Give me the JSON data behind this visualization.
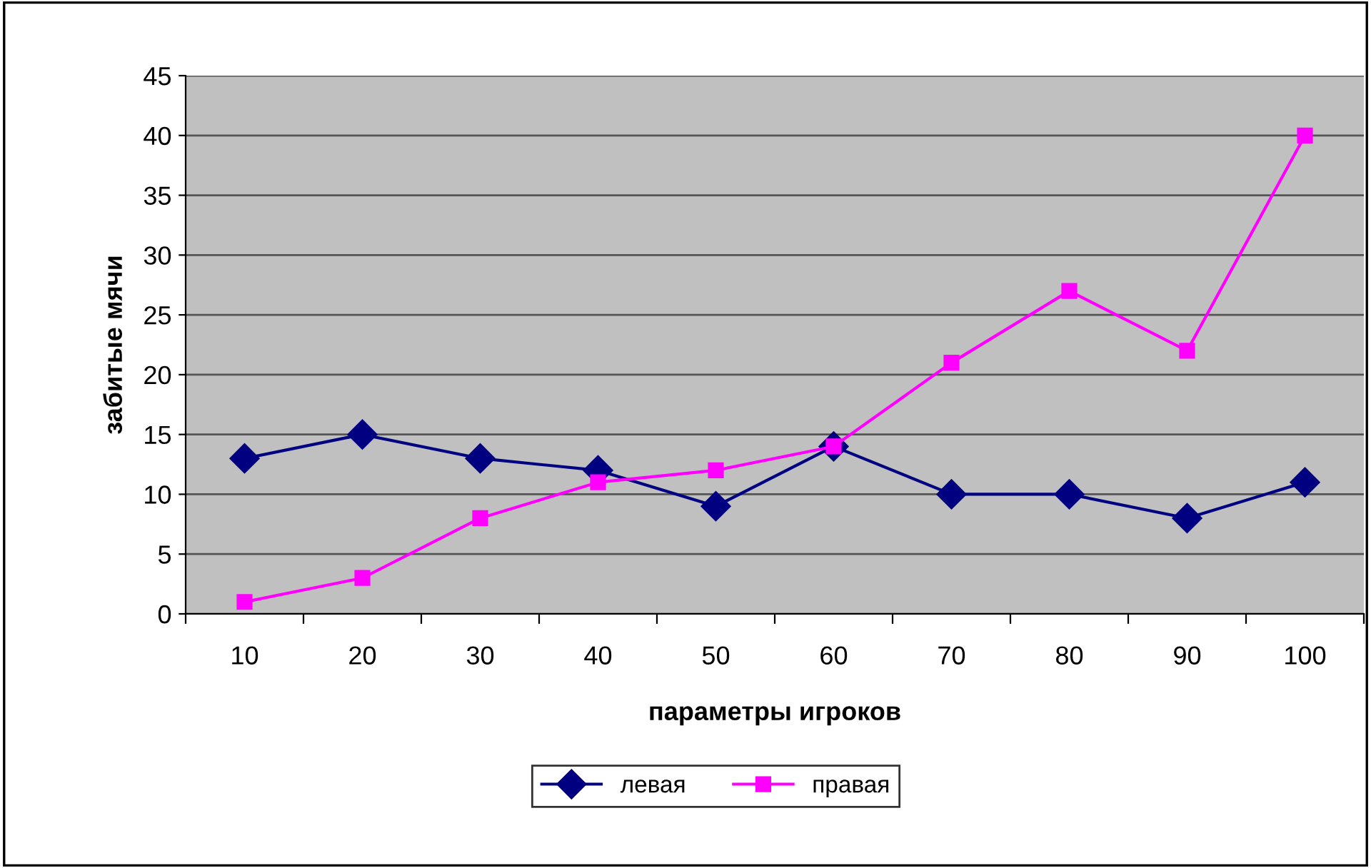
{
  "chart_data": {
    "type": "line",
    "xlabel": "параметры игроков",
    "ylabel": "забитые мячи",
    "categories": [
      "10",
      "20",
      "30",
      "40",
      "50",
      "60",
      "70",
      "80",
      "90",
      "100"
    ],
    "series": [
      {
        "name": "левая",
        "color": "#000080",
        "marker": "diamond",
        "values": [
          13,
          15,
          13,
          12,
          9,
          14,
          10,
          10,
          8,
          11
        ]
      },
      {
        "name": "правая",
        "color": "#ff00ff",
        "marker": "square",
        "values": [
          1,
          3,
          8,
          11,
          12,
          14,
          21,
          27,
          22,
          40
        ]
      }
    ],
    "ylim": [
      0,
      45
    ],
    "yticks": [
      0,
      5,
      10,
      15,
      20,
      25,
      30,
      35,
      40,
      45
    ],
    "grid": "y",
    "legend": "bottom"
  }
}
